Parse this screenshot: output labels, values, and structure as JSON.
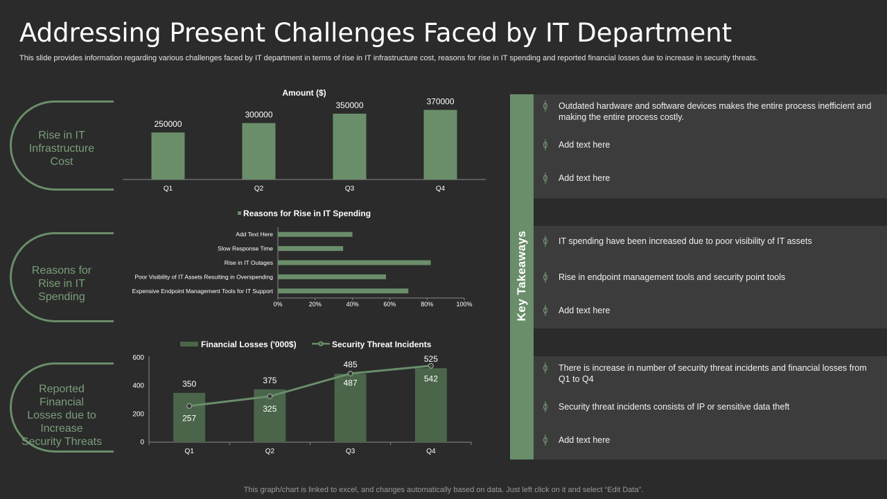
{
  "slide": {
    "title": "Addressing Present Challenges Faced by IT Department",
    "subtitle": "This slide provides information regarding various challenges faced by IT department in terms of rise in IT infrastructure cost, reasons for rise in IT spending and reported financial losses due to increase in security threats.",
    "footer": "This graph/chart is linked to excel,  and changes automatically based on data. Just left click on it and select “Edit Data”."
  },
  "segments": [
    {
      "label": "Rise in IT Infrastructure Cost"
    },
    {
      "label": "Reasons for Rise in IT Spending"
    },
    {
      "label": "Reported Financial Losses due to Increase Security Threats"
    }
  ],
  "key_takeaways": {
    "label": "Key Takeaways",
    "groups": [
      {
        "items": [
          "Outdated hardware  and  software devices  makes the entire process inefficient and making the entire process costly.",
          "Add text here",
          "Add text here"
        ]
      },
      {
        "items": [
          "IT spending  have  been increased due to poor visibility of IT assets",
          "Rise in endpoint  management  tools and security point tools",
          "Add text here"
        ]
      },
      {
        "items": [
          "There  is increase  in  number  of security threat incidents  and financial  losses from Q1 to Q4",
          "Security threat incidents consists of IP  or  sensitive data theft",
          "Add text here"
        ]
      }
    ]
  },
  "colors": {
    "accent": "#6a8e6a",
    "bar_dark": "#4a654a",
    "background": "#2b2b2b",
    "panel": "#3c3c3c"
  },
  "chart_data": [
    {
      "type": "bar",
      "title": "Amount ($)",
      "categories": [
        "Q1",
        "Q2",
        "Q3",
        "Q4"
      ],
      "values": [
        250000,
        300000,
        350000,
        370000
      ],
      "ylim": [
        0,
        420000
      ]
    },
    {
      "type": "bar",
      "orientation": "horizontal",
      "title": "Reasons for Rise in IT Spending",
      "legend": "Reasons for Rise in IT Spending",
      "categories": [
        "Add Text Here",
        "Slow Response Time",
        "Rise in IT Outages",
        "Poor Visibility of IT Assets Resulting in Overspending",
        "Expensive Endpoint Management Tools for IT Support"
      ],
      "values": [
        40,
        35,
        82,
        58,
        70
      ],
      "xlim": [
        0,
        100
      ],
      "ticks": [
        "0%",
        "20%",
        "40%",
        "60%",
        "80%",
        "100%"
      ]
    },
    {
      "type": "bar+line",
      "categories": [
        "Q1",
        "Q2",
        "Q3",
        "Q4"
      ],
      "series": [
        {
          "name": "Financial Losses ('000$)",
          "type": "bar",
          "values": [
            350,
            375,
            485,
            525
          ]
        },
        {
          "name": "Security Threat Incidents",
          "type": "line",
          "values": [
            257,
            325,
            487,
            542
          ]
        }
      ],
      "ylim": [
        0,
        600
      ],
      "yticks": [
        0,
        200,
        400,
        600
      ]
    }
  ]
}
